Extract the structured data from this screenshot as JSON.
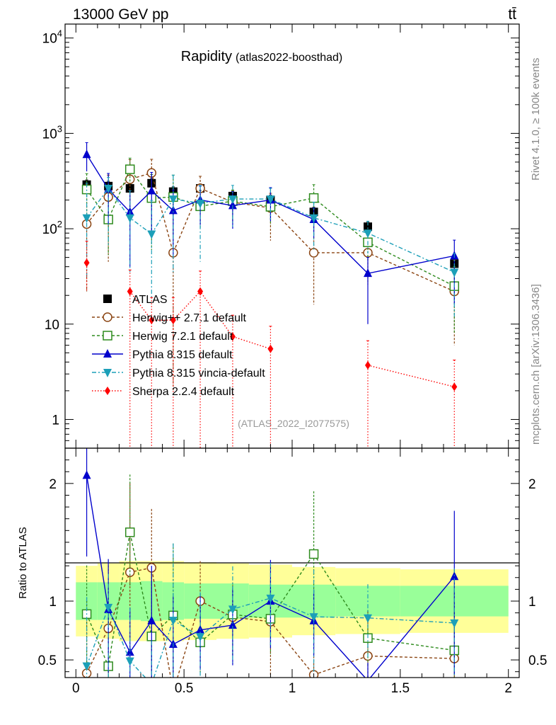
{
  "header": {
    "energy": "13000 GeV pp",
    "process": "tt̄",
    "side_rivet": "Rivet 4.1.0, ≥ 100k events",
    "side_site": "mcplots.cern.ch [arXiv:1306.3436]"
  },
  "chart_data": {
    "type": "scatter",
    "title": "Rapidity",
    "subtitle": "(atlas2022-boosthad)",
    "analysis_id": "(ATLAS_2022_I2077575)",
    "xlabel": "",
    "ylabel_ratio": "Ratio to ATLAS",
    "xlim": [
      -0.05,
      2.05
    ],
    "ylim_main": [
      0.5,
      14000
    ],
    "ylog_main": true,
    "ylim_ratio": [
      0.35,
      2.3
    ],
    "x_ticks": [
      {
        "v": 0,
        "label": "0"
      },
      {
        "v": 0.5,
        "label": "0.5"
      },
      {
        "v": 1,
        "label": "1"
      },
      {
        "v": 1.5,
        "label": "1.5"
      },
      {
        "v": 2,
        "label": "2"
      }
    ],
    "y_ticks_main": [
      {
        "v": 1,
        "label": "1"
      },
      {
        "v": 10,
        "label": "10"
      },
      {
        "v": 100,
        "label": "10",
        "exp": "2"
      },
      {
        "v": 1000,
        "label": "10",
        "exp": "3"
      },
      {
        "v": 10000,
        "label": "10",
        "exp": "4"
      }
    ],
    "y_ticks_ratio": [
      {
        "v": 0.5,
        "label": "0.5"
      },
      {
        "v": 1,
        "label": "1"
      },
      {
        "v": 2,
        "label": "2"
      }
    ],
    "x": [
      0.05,
      0.15,
      0.25,
      0.35,
      0.45,
      0.575,
      0.725,
      0.9,
      1.1,
      1.35,
      1.75
    ],
    "x_edges": [
      0,
      0.1,
      0.2,
      0.3,
      0.4,
      0.5,
      0.65,
      0.8,
      1.0,
      1.2,
      1.5,
      2.0
    ],
    "uncertainty_band_inner": [
      0.16,
      0.16,
      0.16,
      0.17,
      0.16,
      0.15,
      0.15,
      0.14,
      0.14,
      0.13,
      0.13
    ],
    "uncertainty_band_outer": [
      0.3,
      0.32,
      0.34,
      0.34,
      0.34,
      0.33,
      0.32,
      0.31,
      0.29,
      0.28,
      0.27
    ],
    "series": [
      {
        "name": "ATLAS",
        "marker": "square",
        "color": "#000000",
        "dash": "",
        "values": [
          290,
          280,
          265,
          300,
          245,
          265,
          220,
          200,
          150,
          105,
          43
        ],
        "err_up": [
          35,
          35,
          30,
          35,
          30,
          30,
          25,
          25,
          18,
          12,
          5
        ],
        "err_down": [
          35,
          35,
          30,
          35,
          30,
          30,
          25,
          25,
          18,
          12,
          5
        ]
      },
      {
        "name": "Herwig++ 2.7.1 default",
        "marker": "circle-open",
        "color": "#8b4513",
        "dash": "4,3",
        "values": [
          112,
          215,
          330,
          385,
          56,
          265,
          190,
          165,
          56,
          56,
          22
        ],
        "err_up": [
          180,
          150,
          200,
          150,
          200,
          90,
          60,
          70,
          60,
          40,
          25
        ],
        "err_down": [
          90,
          170,
          180,
          220,
          54,
          100,
          70,
          90,
          40,
          30,
          16
        ]
      },
      {
        "name": "Herwig 7.2.1 default",
        "marker": "square-open",
        "color": "#2e8b1e",
        "dash": "4,3",
        "values": [
          258,
          125,
          420,
          210,
          215,
          172,
          195,
          170,
          210,
          72,
          25
        ],
        "err_up": [
          120,
          150,
          130,
          160,
          150,
          80,
          60,
          50,
          80,
          25,
          15
        ],
        "err_down": [
          120,
          72,
          120,
          150,
          130,
          72,
          80,
          60,
          90,
          25,
          17
        ]
      },
      {
        "name": "Pythia 8.315 default",
        "marker": "triangle-up",
        "color": "#0000cc",
        "dash": "",
        "values": [
          600,
          260,
          150,
          250,
          155,
          200,
          175,
          200,
          125,
          34,
          52
        ],
        "err_up": [
          200,
          120,
          100,
          140,
          100,
          80,
          70,
          70,
          40,
          16,
          24
        ],
        "err_down": [
          200,
          150,
          110,
          160,
          105,
          90,
          75,
          80,
          45,
          24,
          36
        ]
      },
      {
        "name": "Pythia 8.315 vincia-default",
        "marker": "triangle-down",
        "color": "#1c9fb8",
        "dash": "6,3,2,3",
        "values": [
          130,
          265,
          130,
          88,
          205,
          185,
          205,
          205,
          130,
          90,
          35
        ],
        "err_up": [
          170,
          80,
          120,
          110,
          160,
          100,
          80,
          60,
          60,
          30,
          20
        ],
        "err_down": [
          100,
          200,
          95,
          70,
          170,
          140,
          100,
          80,
          70,
          35,
          23
        ]
      },
      {
        "name": "Sherpa 2.2.4 default",
        "marker": "diamond",
        "color": "#ff0000",
        "dash": "1.5,2.5",
        "values": [
          44,
          null,
          22,
          11,
          11,
          22,
          7.4,
          5.5,
          null,
          3.7,
          2.2
        ],
        "err_up": [
          30,
          null,
          15,
          8,
          8,
          14,
          5,
          4,
          null,
          3,
          2
        ],
        "err_down": [
          22,
          null,
          21.9,
          10.9,
          10.9,
          21.9,
          7.3,
          5.4,
          null,
          3.6,
          2.1
        ]
      }
    ]
  }
}
